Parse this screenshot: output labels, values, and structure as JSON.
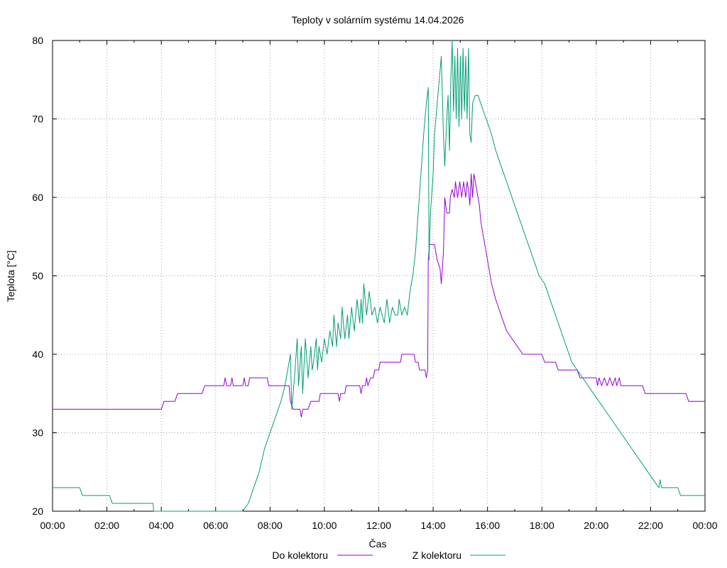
{
  "chart_data": {
    "type": "line",
    "title": "Teploty v solárním systému 14.04.2026",
    "xlabel": "Čas",
    "ylabel": "Teplota [°C]",
    "xlim": [
      0,
      24
    ],
    "ylim": [
      20,
      80
    ],
    "x_ticks": [
      "00:00",
      "02:00",
      "04:00",
      "06:00",
      "08:00",
      "10:00",
      "12:00",
      "14:00",
      "16:00",
      "18:00",
      "20:00",
      "22:00",
      "00:00"
    ],
    "y_ticks": [
      20,
      30,
      40,
      50,
      60,
      70,
      80
    ],
    "grid": true,
    "legend_position": "bottom",
    "series": [
      {
        "name": "Do kolektoru",
        "color": "#9400d3",
        "points": [
          [
            0,
            33
          ],
          [
            4.0,
            33
          ],
          [
            4.1,
            34
          ],
          [
            4.5,
            34
          ],
          [
            4.6,
            35
          ],
          [
            5.5,
            35
          ],
          [
            5.6,
            36
          ],
          [
            6.3,
            36
          ],
          [
            6.35,
            37
          ],
          [
            6.4,
            36
          ],
          [
            6.55,
            36
          ],
          [
            6.6,
            37
          ],
          [
            6.65,
            36
          ],
          [
            7.0,
            36
          ],
          [
            7.05,
            37
          ],
          [
            7.1,
            36
          ],
          [
            7.2,
            36
          ],
          [
            7.25,
            37
          ],
          [
            7.9,
            37
          ],
          [
            7.95,
            36
          ],
          [
            8.7,
            36
          ],
          [
            8.75,
            34
          ],
          [
            8.85,
            33
          ],
          [
            9.1,
            33
          ],
          [
            9.15,
            32
          ],
          [
            9.2,
            33
          ],
          [
            9.4,
            33
          ],
          [
            9.5,
            34
          ],
          [
            9.8,
            34
          ],
          [
            9.85,
            35
          ],
          [
            10.5,
            35
          ],
          [
            10.55,
            34
          ],
          [
            10.6,
            35
          ],
          [
            10.75,
            35
          ],
          [
            10.8,
            36
          ],
          [
            11.3,
            36
          ],
          [
            11.35,
            35
          ],
          [
            11.4,
            36
          ],
          [
            11.5,
            36
          ],
          [
            11.55,
            37
          ],
          [
            11.6,
            36
          ],
          [
            11.7,
            37
          ],
          [
            11.8,
            37
          ],
          [
            11.85,
            38
          ],
          [
            12.0,
            38
          ],
          [
            12.05,
            39
          ],
          [
            12.8,
            39
          ],
          [
            12.85,
            40
          ],
          [
            13.3,
            40
          ],
          [
            13.35,
            39
          ],
          [
            13.45,
            39
          ],
          [
            13.5,
            38
          ],
          [
            13.7,
            38
          ],
          [
            13.75,
            37
          ],
          [
            13.8,
            38
          ],
          [
            13.82,
            52
          ],
          [
            13.87,
            54
          ],
          [
            14.05,
            54
          ],
          [
            14.15,
            52
          ],
          [
            14.25,
            51
          ],
          [
            14.3,
            49
          ],
          [
            14.38,
            53
          ],
          [
            14.43,
            60
          ],
          [
            14.5,
            58
          ],
          [
            14.6,
            58
          ],
          [
            14.63,
            60
          ],
          [
            14.7,
            61
          ],
          [
            14.78,
            60
          ],
          [
            14.82,
            62
          ],
          [
            14.9,
            60
          ],
          [
            14.98,
            62
          ],
          [
            15.05,
            60
          ],
          [
            15.12,
            62
          ],
          [
            15.2,
            60
          ],
          [
            15.25,
            62
          ],
          [
            15.3,
            61
          ],
          [
            15.35,
            59
          ],
          [
            15.4,
            63
          ],
          [
            15.45,
            60
          ],
          [
            15.5,
            63
          ],
          [
            15.6,
            61
          ],
          [
            15.7,
            59
          ],
          [
            15.75,
            57
          ],
          [
            15.85,
            55
          ],
          [
            15.95,
            53
          ],
          [
            16.05,
            51
          ],
          [
            16.15,
            49
          ],
          [
            16.3,
            47
          ],
          [
            16.5,
            45
          ],
          [
            16.7,
            43
          ],
          [
            16.9,
            42
          ],
          [
            17.1,
            41
          ],
          [
            17.3,
            40
          ],
          [
            18.0,
            40
          ],
          [
            18.1,
            39
          ],
          [
            18.5,
            39
          ],
          [
            18.6,
            38
          ],
          [
            19.3,
            38
          ],
          [
            19.4,
            37
          ],
          [
            20.0,
            37
          ],
          [
            20.05,
            36
          ],
          [
            20.1,
            37
          ],
          [
            20.2,
            36
          ],
          [
            20.3,
            37
          ],
          [
            20.4,
            36
          ],
          [
            20.5,
            37
          ],
          [
            20.6,
            36
          ],
          [
            20.7,
            37
          ],
          [
            20.75,
            36
          ],
          [
            20.85,
            37
          ],
          [
            20.9,
            36
          ],
          [
            21.7,
            36
          ],
          [
            21.8,
            35
          ],
          [
            23.3,
            35
          ],
          [
            23.4,
            34
          ],
          [
            24.0,
            34
          ]
        ]
      },
      {
        "name": "Z kolektoru",
        "color": "#009e73",
        "points": [
          [
            0,
            23
          ],
          [
            1.0,
            23
          ],
          [
            1.1,
            22
          ],
          [
            2.1,
            22
          ],
          [
            2.2,
            21
          ],
          [
            3.7,
            21
          ],
          [
            3.72,
            20
          ],
          [
            7.0,
            20
          ],
          [
            7.2,
            21
          ],
          [
            7.4,
            23
          ],
          [
            7.6,
            25
          ],
          [
            7.8,
            28
          ],
          [
            8.0,
            30
          ],
          [
            8.2,
            32
          ],
          [
            8.4,
            34
          ],
          [
            8.55,
            36
          ],
          [
            8.65,
            38
          ],
          [
            8.75,
            40
          ],
          [
            8.8,
            33
          ],
          [
            8.9,
            37
          ],
          [
            9.0,
            42
          ],
          [
            9.05,
            36
          ],
          [
            9.15,
            41
          ],
          [
            9.2,
            35
          ],
          [
            9.3,
            42
          ],
          [
            9.4,
            37
          ],
          [
            9.5,
            41
          ],
          [
            9.55,
            38
          ],
          [
            9.6,
            39
          ],
          [
            9.7,
            42
          ],
          [
            9.75,
            38
          ],
          [
            9.8,
            41
          ],
          [
            9.9,
            39
          ],
          [
            10.0,
            42
          ],
          [
            10.1,
            40
          ],
          [
            10.2,
            43
          ],
          [
            10.3,
            41
          ],
          [
            10.35,
            45
          ],
          [
            10.45,
            41
          ],
          [
            10.5,
            44
          ],
          [
            10.6,
            42
          ],
          [
            10.65,
            46
          ],
          [
            10.75,
            42
          ],
          [
            10.85,
            45
          ],
          [
            10.9,
            42
          ],
          [
            11.0,
            46
          ],
          [
            11.1,
            43
          ],
          [
            11.2,
            47
          ],
          [
            11.3,
            44
          ],
          [
            11.35,
            47
          ],
          [
            11.4,
            44
          ],
          [
            11.45,
            49
          ],
          [
            11.55,
            45
          ],
          [
            11.65,
            48
          ],
          [
            11.75,
            45
          ],
          [
            11.85,
            46
          ],
          [
            11.95,
            44
          ],
          [
            12.05,
            46
          ],
          [
            12.2,
            44
          ],
          [
            12.3,
            47
          ],
          [
            12.4,
            44
          ],
          [
            12.5,
            46
          ],
          [
            12.6,
            45
          ],
          [
            12.7,
            45
          ],
          [
            12.75,
            47
          ],
          [
            12.85,
            45
          ],
          [
            12.95,
            46
          ],
          [
            13.05,
            45
          ],
          [
            13.15,
            48
          ],
          [
            13.25,
            50
          ],
          [
            13.35,
            53
          ],
          [
            13.45,
            58
          ],
          [
            13.55,
            63
          ],
          [
            13.65,
            68
          ],
          [
            13.75,
            72
          ],
          [
            13.82,
            74
          ],
          [
            13.85,
            52
          ],
          [
            13.9,
            58
          ],
          [
            14.0,
            63
          ],
          [
            14.05,
            68
          ],
          [
            14.15,
            72
          ],
          [
            14.25,
            76
          ],
          [
            14.3,
            78
          ],
          [
            14.38,
            68
          ],
          [
            14.43,
            64
          ],
          [
            14.5,
            70
          ],
          [
            14.55,
            73
          ],
          [
            14.6,
            66
          ],
          [
            14.65,
            75
          ],
          [
            14.7,
            80
          ],
          [
            14.75,
            71
          ],
          [
            14.8,
            78
          ],
          [
            14.85,
            70
          ],
          [
            14.9,
            79
          ],
          [
            14.95,
            69
          ],
          [
            15.0,
            78
          ],
          [
            15.05,
            70
          ],
          [
            15.1,
            79
          ],
          [
            15.15,
            71
          ],
          [
            15.2,
            78
          ],
          [
            15.25,
            70
          ],
          [
            15.3,
            79
          ],
          [
            15.35,
            68
          ],
          [
            15.4,
            67
          ],
          [
            15.45,
            72
          ],
          [
            15.55,
            73
          ],
          [
            15.65,
            73
          ],
          [
            15.75,
            72
          ],
          [
            15.85,
            71
          ],
          [
            15.95,
            70
          ],
          [
            16.05,
            69
          ],
          [
            16.15,
            68
          ],
          [
            16.3,
            66
          ],
          [
            16.5,
            64
          ],
          [
            16.7,
            62
          ],
          [
            16.9,
            60
          ],
          [
            17.1,
            58
          ],
          [
            17.3,
            56
          ],
          [
            17.5,
            54
          ],
          [
            17.7,
            52
          ],
          [
            17.9,
            50
          ],
          [
            18.1,
            49
          ],
          [
            18.3,
            47
          ],
          [
            18.5,
            45
          ],
          [
            18.7,
            43
          ],
          [
            18.9,
            41
          ],
          [
            19.1,
            39
          ],
          [
            19.3,
            38
          ],
          [
            19.5,
            37
          ],
          [
            19.7,
            36
          ],
          [
            19.9,
            35
          ],
          [
            20.1,
            34
          ],
          [
            20.3,
            33
          ],
          [
            20.5,
            32
          ],
          [
            20.7,
            31
          ],
          [
            20.9,
            30
          ],
          [
            21.1,
            29
          ],
          [
            21.3,
            28
          ],
          [
            21.5,
            27
          ],
          [
            21.7,
            26
          ],
          [
            21.9,
            25
          ],
          [
            22.1,
            24
          ],
          [
            22.3,
            23
          ],
          [
            22.35,
            24
          ],
          [
            22.4,
            23
          ],
          [
            23.0,
            23
          ],
          [
            23.1,
            22
          ],
          [
            24.0,
            22
          ]
        ]
      }
    ]
  }
}
